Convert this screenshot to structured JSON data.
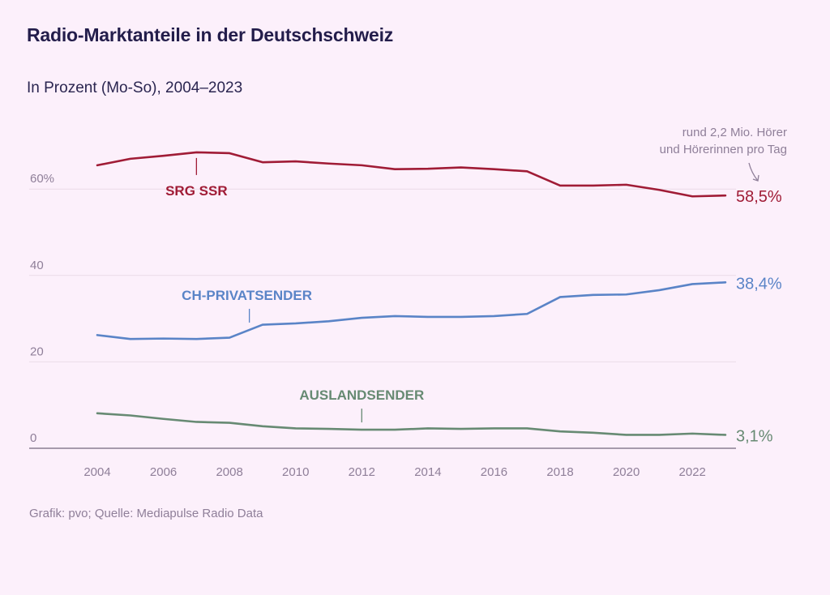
{
  "header": {
    "title": "Radio-Marktanteile in der Deutschschweiz",
    "subtitle": "In Prozent (Mo-So), 2004–2023"
  },
  "footer": {
    "source": "Grafik: pvo; Quelle: Mediapulse Radio Data"
  },
  "annotation": {
    "lines": [
      "rund 2,2 Mio. Hörer",
      "und Hörerinnen pro Tag"
    ],
    "icon": "arrow-down-right-icon"
  },
  "chart_data": {
    "type": "line",
    "title": "Radio-Marktanteile in der Deutschschweiz",
    "subtitle": "In Prozent (Mo-So), 2004–2023",
    "xlabel": "",
    "ylabel": "",
    "x": [
      2004,
      2005,
      2006,
      2007,
      2008,
      2009,
      2010,
      2011,
      2012,
      2013,
      2014,
      2015,
      2016,
      2017,
      2018,
      2019,
      2020,
      2021,
      2022,
      2023
    ],
    "xticks": [
      2004,
      2006,
      2008,
      2010,
      2012,
      2014,
      2016,
      2018,
      2020,
      2022
    ],
    "yticks": [
      0,
      20,
      40,
      60
    ],
    "ytick_labels": [
      "0",
      "20",
      "40",
      "60%"
    ],
    "ylim": [
      0,
      70
    ],
    "xlim": [
      2004,
      2023
    ],
    "grid": true,
    "legend": "inline-labels",
    "series": [
      {
        "name": "SRG SSR",
        "color": "#a01c36",
        "end_label": "58,5%",
        "label_year": 2007,
        "values": [
          65.5,
          67.0,
          67.7,
          68.5,
          68.3,
          66.2,
          66.4,
          65.9,
          65.5,
          64.6,
          64.7,
          65.0,
          64.6,
          64.1,
          60.8,
          60.8,
          61.0,
          59.8,
          58.3,
          58.5
        ]
      },
      {
        "name": "CH-PRIVATSENDER",
        "color": "#5a84c7",
        "end_label": "38,4%",
        "label_year": 2008.6,
        "values": [
          26.2,
          25.3,
          25.4,
          25.3,
          25.6,
          28.6,
          28.9,
          29.4,
          30.2,
          30.6,
          30.4,
          30.4,
          30.6,
          31.1,
          35.0,
          35.5,
          35.6,
          36.6,
          38.0,
          38.4
        ]
      },
      {
        "name": "AUSLANDSENDER",
        "color": "#678a73",
        "end_label": "3,1%",
        "label_year": 2012,
        "values": [
          8.1,
          7.6,
          6.8,
          6.1,
          5.9,
          5.1,
          4.6,
          4.5,
          4.3,
          4.3,
          4.6,
          4.5,
          4.6,
          4.6,
          3.9,
          3.6,
          3.1,
          3.1,
          3.4,
          3.1
        ]
      }
    ]
  }
}
